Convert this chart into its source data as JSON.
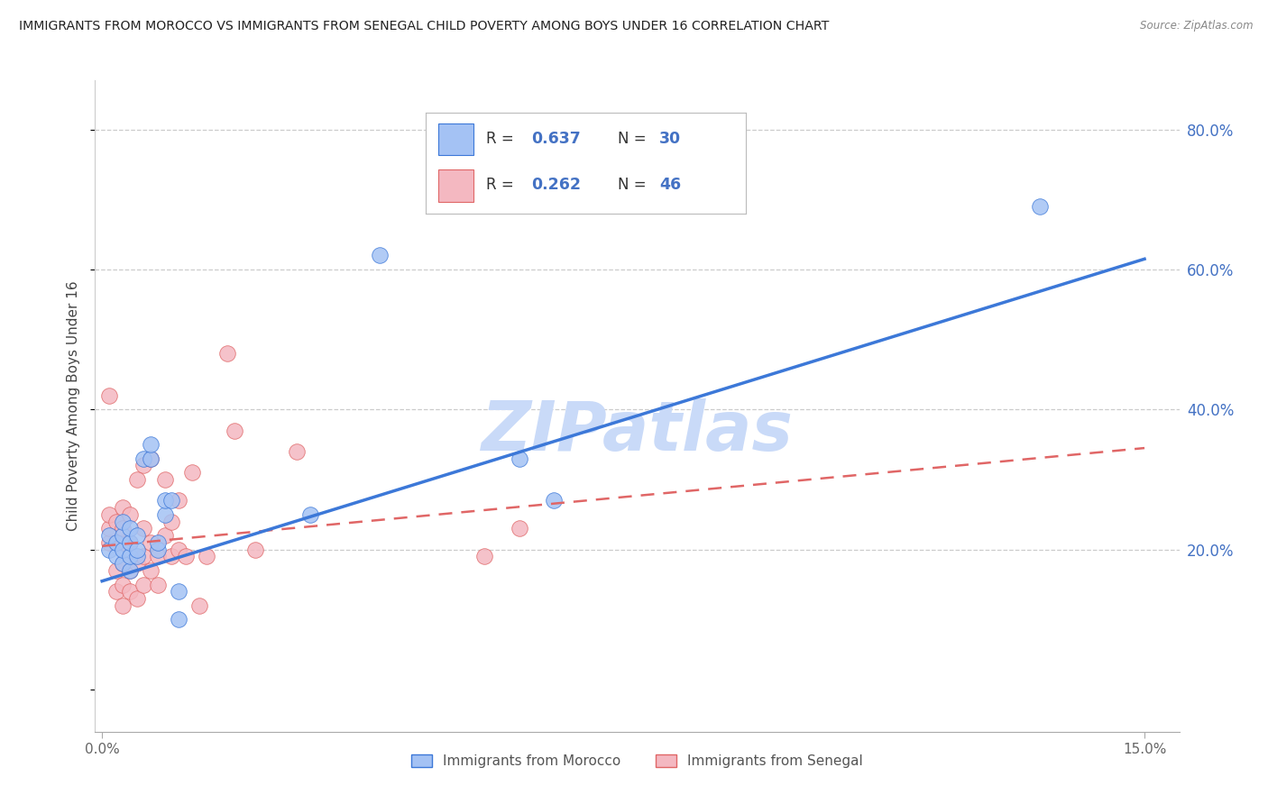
{
  "title": "IMMIGRANTS FROM MOROCCO VS IMMIGRANTS FROM SENEGAL CHILD POVERTY AMONG BOYS UNDER 16 CORRELATION CHART",
  "source": "Source: ZipAtlas.com",
  "ylabel": "Child Poverty Among Boys Under 16",
  "morocco_R": 0.637,
  "morocco_N": 30,
  "senegal_R": 0.262,
  "senegal_N": 46,
  "morocco_color": "#a4c2f4",
  "senegal_color": "#f4b8c1",
  "trendline_morocco_color": "#3c78d8",
  "trendline_senegal_color": "#e06666",
  "legend_text_color": "#4472c4",
  "watermark_color": "#c9daf8",
  "background_color": "#ffffff",
  "legend_label_morocco": "Immigrants from Morocco",
  "legend_label_senegal": "Immigrants from Senegal",
  "xlim": [
    -0.001,
    0.155
  ],
  "ylim": [
    -0.06,
    0.87
  ],
  "ytick_values": [
    0.2,
    0.4,
    0.6,
    0.8
  ],
  "ytick_labels": [
    "20.0%",
    "40.0%",
    "60.0%",
    "80.0%"
  ],
  "morocco_trendline_y0": 0.155,
  "morocco_trendline_y1": 0.615,
  "senegal_trendline_y0": 0.205,
  "senegal_trendline_y1": 0.345,
  "morocco_x": [
    0.001,
    0.001,
    0.002,
    0.002,
    0.003,
    0.003,
    0.003,
    0.003,
    0.004,
    0.004,
    0.004,
    0.004,
    0.005,
    0.005,
    0.005,
    0.006,
    0.007,
    0.007,
    0.008,
    0.008,
    0.009,
    0.009,
    0.01,
    0.011,
    0.011,
    0.03,
    0.04,
    0.06,
    0.065,
    0.135
  ],
  "morocco_y": [
    0.2,
    0.22,
    0.19,
    0.21,
    0.18,
    0.2,
    0.22,
    0.24,
    0.17,
    0.19,
    0.21,
    0.23,
    0.19,
    0.2,
    0.22,
    0.33,
    0.33,
    0.35,
    0.2,
    0.21,
    0.25,
    0.27,
    0.27,
    0.1,
    0.14,
    0.25,
    0.62,
    0.33,
    0.27,
    0.69
  ],
  "senegal_x": [
    0.001,
    0.001,
    0.001,
    0.001,
    0.002,
    0.002,
    0.002,
    0.002,
    0.003,
    0.003,
    0.003,
    0.003,
    0.003,
    0.003,
    0.004,
    0.004,
    0.004,
    0.004,
    0.005,
    0.005,
    0.005,
    0.006,
    0.006,
    0.006,
    0.006,
    0.007,
    0.007,
    0.007,
    0.008,
    0.008,
    0.009,
    0.009,
    0.01,
    0.01,
    0.011,
    0.011,
    0.012,
    0.013,
    0.014,
    0.015,
    0.018,
    0.019,
    0.022,
    0.028,
    0.055,
    0.06
  ],
  "senegal_y": [
    0.21,
    0.23,
    0.25,
    0.42,
    0.14,
    0.17,
    0.21,
    0.24,
    0.12,
    0.15,
    0.18,
    0.21,
    0.23,
    0.26,
    0.14,
    0.17,
    0.21,
    0.25,
    0.13,
    0.18,
    0.3,
    0.15,
    0.19,
    0.23,
    0.32,
    0.17,
    0.21,
    0.33,
    0.15,
    0.19,
    0.22,
    0.3,
    0.19,
    0.24,
    0.2,
    0.27,
    0.19,
    0.31,
    0.12,
    0.19,
    0.48,
    0.37,
    0.2,
    0.34,
    0.19,
    0.23
  ]
}
